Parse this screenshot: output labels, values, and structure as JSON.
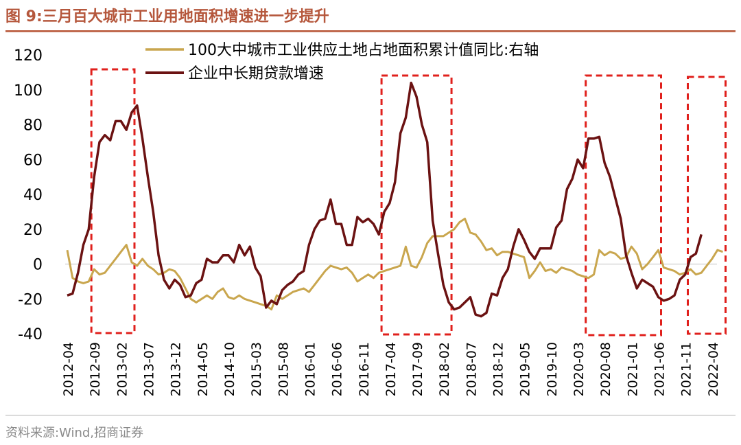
{
  "title": "图 9:三月百大城市工业用地面积增速进一步提升",
  "source": "资料来源:Wind,招商证券",
  "chart_data": {
    "type": "line",
    "title": "三月百大城市工业用地面积增速进一步提升",
    "xlabel": "",
    "ylabel": "",
    "ylim": [
      -40,
      120
    ],
    "yticks": [
      120,
      100,
      80,
      60,
      40,
      20,
      0,
      -20,
      -40
    ],
    "x_tick_labels": [
      "2012-04",
      "2012-09",
      "2013-02",
      "2013-07",
      "2013-12",
      "2014-05",
      "2014-10",
      "2015-03",
      "2015-08",
      "2016-01",
      "2016-06",
      "2016-11",
      "2017-04",
      "2017-09",
      "2018-02",
      "2018-07",
      "2018-12",
      "2019-05",
      "2019-10",
      "2020-03",
      "2020-08",
      "2021-01",
      "2021-06",
      "2021-11",
      "2022-04"
    ],
    "x_start": "2012-04",
    "series": [
      {
        "name": "100大中城市工业供应土地占地面积累计值同比:右轴",
        "color": "#c9a64e",
        "values": [
          8,
          -8,
          -10,
          -11,
          -10,
          -3,
          -6,
          -5,
          -1,
          3,
          7,
          11,
          1,
          -1,
          3,
          -1,
          -3,
          -6,
          -5,
          -3,
          -4,
          -8,
          -14,
          -20,
          -22,
          -20,
          -18,
          -20,
          -16,
          -14,
          -19,
          -20,
          -18,
          -20,
          -21,
          -22,
          -23,
          -24,
          -26,
          -18,
          -20,
          -18,
          -16,
          -15,
          -14,
          -16,
          -12,
          -8,
          -4,
          -1,
          -2,
          -3,
          -2,
          -5,
          -10,
          -8,
          -6,
          -8,
          -5,
          -4,
          -3,
          -2,
          -1,
          10,
          -1,
          -2,
          4,
          12,
          16,
          16,
          16,
          18,
          20,
          24,
          26,
          18,
          17,
          13,
          8,
          9,
          5,
          7,
          7,
          6,
          5,
          4,
          -8,
          -4,
          1,
          -4,
          -3,
          -5,
          -2,
          -3,
          -4,
          -6,
          -7,
          -8,
          -6,
          8,
          5,
          7,
          6,
          3,
          4,
          10,
          6,
          -3,
          0,
          4,
          8,
          -2,
          -3,
          -4,
          -6,
          -5,
          -3,
          -6,
          -5,
          -1,
          3,
          8,
          7
        ],
        "labels_first_index": 0
      },
      {
        "name": "企业中长期贷款增速",
        "color": "#6b1212",
        "values": [
          -18,
          -17,
          -5,
          11,
          20,
          50,
          70,
          74,
          71,
          82,
          82,
          77,
          87,
          91,
          72,
          50,
          30,
          5,
          -9,
          -14,
          -9,
          -12,
          -19,
          -18,
          -11,
          -9,
          3,
          1,
          1,
          5,
          5,
          1,
          11,
          5,
          10,
          -2,
          -7,
          -25,
          -21,
          -23,
          -15,
          -12,
          -10,
          -6,
          -4,
          11,
          20,
          25,
          26,
          37,
          23,
          23,
          11,
          11,
          27,
          24,
          26,
          23,
          17,
          30,
          35,
          47,
          75,
          84,
          104,
          96,
          80,
          70,
          25,
          6,
          -12,
          -22,
          -26,
          -25,
          -22,
          -19,
          -29,
          -30,
          -28,
          -17,
          -18,
          -8,
          -3,
          10,
          20,
          14,
          7,
          3,
          9,
          9,
          9,
          21,
          25,
          43,
          49,
          60,
          55,
          72,
          72,
          73,
          58,
          50,
          38,
          26,
          5,
          -5,
          -14,
          -9,
          -11,
          -13,
          -19,
          -21,
          -20,
          -18,
          -9,
          -6,
          4,
          6,
          17
        ],
        "labels_first_index": 0
      }
    ],
    "highlight_boxes": [
      {
        "start": "2012-09",
        "end": "2013-04",
        "label": ""
      },
      {
        "start": "2017-03",
        "end": "2018-03",
        "label": ""
      },
      {
        "start": "2020-05",
        "end": "2021-06",
        "label": ""
      },
      {
        "start": "2021-12",
        "end": "2022-06",
        "label": ""
      }
    ],
    "legend_position": "top-center"
  }
}
